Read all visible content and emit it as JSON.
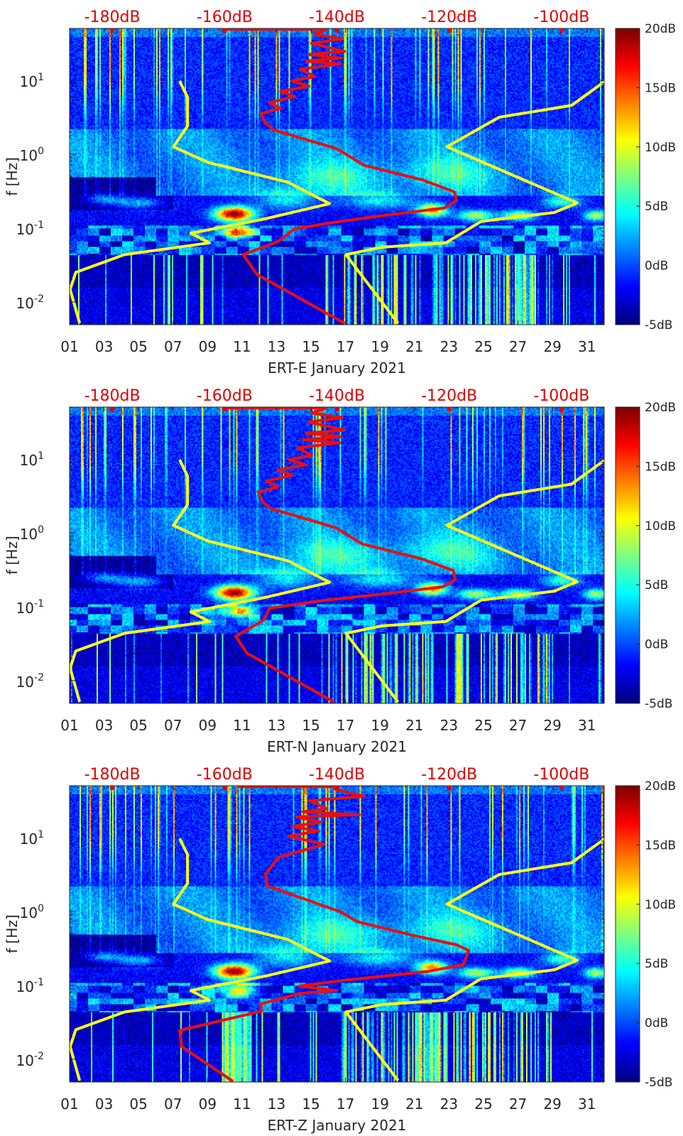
{
  "chart_data": [
    {
      "type": "heatmap",
      "xlabel": "ERT-E January 2021",
      "ylabel": "f [Hz]",
      "x_range_days": [
        1,
        32
      ],
      "x_ticks": [
        "01",
        "03",
        "05",
        "07",
        "09",
        "11",
        "13",
        "15",
        "17",
        "19",
        "21",
        "23",
        "25",
        "27",
        "29",
        "31"
      ],
      "y_scale": "log",
      "y_range_log10": [
        -2.308,
        1.702
      ],
      "y_ticks": [
        {
          "log10": 1,
          "base": "10",
          "exp": "1"
        },
        {
          "log10": 0,
          "base": "10",
          "exp": "0"
        },
        {
          "log10": -1,
          "base": "10",
          "exp": "-1"
        },
        {
          "log10": -2,
          "base": "10",
          "exp": "-2"
        }
      ],
      "colorbar": {
        "range": [
          -5,
          20
        ],
        "ticks": [
          {
            "value": 20,
            "label": "20dB"
          },
          {
            "value": 15,
            "label": "15dB"
          },
          {
            "value": 10,
            "label": "10dB"
          },
          {
            "value": 5,
            "label": "5dB"
          },
          {
            "value": 0,
            "label": "0dB"
          },
          {
            "value": -5,
            "label": "-5dB"
          }
        ]
      },
      "top_axis": {
        "range_db": [
          -187.6,
          -92.4
        ],
        "ticks": [
          {
            "value": -180,
            "label": "-180dB"
          },
          {
            "value": -160,
            "label": "-160dB"
          },
          {
            "value": -140,
            "label": "-140dB"
          },
          {
            "value": -120,
            "label": "-120dB"
          },
          {
            "value": -100,
            "label": "-100dB"
          }
        ],
        "color": "#e00000"
      },
      "series": [
        {
          "name": "low-noise-model",
          "color": "#ffff1a",
          "points_db_log10f": [
            [
              -168.0,
              0.99
            ],
            [
              -166.6,
              0.77
            ],
            [
              -166.6,
              0.38
            ],
            [
              -169.1,
              0.1
            ],
            [
              -163.0,
              -0.11
            ],
            [
              -148.7,
              -0.38
            ],
            [
              -141.3,
              -0.67
            ],
            [
              -152.5,
              -0.87
            ],
            [
              -166.0,
              -1.07
            ],
            [
              -162.7,
              -1.2
            ],
            [
              -177.8,
              -1.36
            ],
            [
              -186.5,
              -1.6
            ],
            [
              -187.5,
              -1.83
            ],
            [
              -185.8,
              -2.29
            ]
          ]
        },
        {
          "name": "high-noise-model",
          "color": "#ffff1a",
          "points_db_log10f": [
            [
              -92.2,
              0.99
            ],
            [
              -98.2,
              0.66
            ],
            [
              -111.1,
              0.5
            ],
            [
              -120.4,
              0.1
            ],
            [
              -97.2,
              -0.66
            ],
            [
              -101.3,
              -0.79
            ],
            [
              -114.3,
              -0.91
            ],
            [
              -120.6,
              -1.2
            ],
            [
              -132.0,
              -1.26
            ],
            [
              -138.4,
              -1.36
            ],
            [
              -129.1,
              -2.29
            ]
          ]
        },
        {
          "name": "station-psd",
          "color": "#e81010",
          "points_db_log10f": [
            [
              -160.5,
              1.69
            ],
            [
              -141.9,
              1.69
            ],
            [
              -144,
              1.62
            ],
            [
              -139,
              1.56
            ],
            [
              -144.5,
              1.5
            ],
            [
              -138.6,
              1.39
            ],
            [
              -145,
              1.35
            ],
            [
              -139.2,
              1.3
            ],
            [
              -145.5,
              1.26
            ],
            [
              -139.4,
              1.22
            ],
            [
              -146.5,
              1.15
            ],
            [
              -144,
              1.05
            ],
            [
              -148,
              0.99
            ],
            [
              -145,
              0.92
            ],
            [
              -150,
              0.85
            ],
            [
              -147.5,
              0.78
            ],
            [
              -152,
              0.7
            ],
            [
              -150,
              0.62
            ],
            [
              -153.5,
              0.55
            ],
            [
              -152.7,
              0.42
            ],
            [
              -151.3,
              0.33
            ],
            [
              -139.9,
              0.07
            ],
            [
              -135.2,
              -0.15
            ],
            [
              -124.7,
              -0.35
            ],
            [
              -119.1,
              -0.51
            ],
            [
              -118.7,
              -0.63
            ],
            [
              -120.9,
              -0.73
            ],
            [
              -131.8,
              -0.83
            ],
            [
              -140.3,
              -0.92
            ],
            [
              -147.5,
              -1.01
            ],
            [
              -150.4,
              -1.18
            ],
            [
              -156.7,
              -1.36
            ],
            [
              -154.2,
              -1.63
            ],
            [
              -138.6,
              -2.29
            ]
          ]
        }
      ]
    },
    {
      "type": "heatmap",
      "xlabel": "ERT-N January 2021",
      "ylabel": "f [Hz]",
      "x_range_days": [
        1,
        32
      ],
      "x_ticks": [
        "01",
        "03",
        "05",
        "07",
        "09",
        "11",
        "13",
        "15",
        "17",
        "19",
        "21",
        "23",
        "25",
        "27",
        "29",
        "31"
      ],
      "y_scale": "log",
      "y_range_log10": [
        -2.308,
        1.702
      ],
      "y_ticks": [
        {
          "log10": 1,
          "base": "10",
          "exp": "1"
        },
        {
          "log10": 0,
          "base": "10",
          "exp": "0"
        },
        {
          "log10": -1,
          "base": "10",
          "exp": "-1"
        },
        {
          "log10": -2,
          "base": "10",
          "exp": "-2"
        }
      ],
      "colorbar": {
        "range": [
          -5,
          20
        ],
        "ticks": [
          {
            "value": 20,
            "label": "20dB"
          },
          {
            "value": 15,
            "label": "15dB"
          },
          {
            "value": 10,
            "label": "10dB"
          },
          {
            "value": 5,
            "label": "5dB"
          },
          {
            "value": 0,
            "label": "0dB"
          },
          {
            "value": -5,
            "label": "-5dB"
          }
        ]
      },
      "top_axis": {
        "range_db": [
          -187.6,
          -92.4
        ],
        "ticks": [
          {
            "value": -180,
            "label": "-180dB"
          },
          {
            "value": -160,
            "label": "-160dB"
          },
          {
            "value": -140,
            "label": "-140dB"
          },
          {
            "value": -120,
            "label": "-120dB"
          },
          {
            "value": -100,
            "label": "-100dB"
          }
        ],
        "color": "#e00000"
      },
      "series": [
        {
          "name": "low-noise-model",
          "color": "#ffff1a",
          "points_db_log10f": [
            [
              -168.0,
              0.99
            ],
            [
              -166.6,
              0.77
            ],
            [
              -166.6,
              0.38
            ],
            [
              -169.1,
              0.1
            ],
            [
              -163.0,
              -0.11
            ],
            [
              -148.7,
              -0.38
            ],
            [
              -141.3,
              -0.67
            ],
            [
              -152.5,
              -0.87
            ],
            [
              -166.0,
              -1.07
            ],
            [
              -162.7,
              -1.2
            ],
            [
              -177.8,
              -1.36
            ],
            [
              -186.5,
              -1.6
            ],
            [
              -187.5,
              -1.83
            ],
            [
              -185.8,
              -2.29
            ]
          ]
        },
        {
          "name": "high-noise-model",
          "color": "#ffff1a",
          "points_db_log10f": [
            [
              -92.2,
              0.99
            ],
            [
              -98.2,
              0.66
            ],
            [
              -111.1,
              0.5
            ],
            [
              -120.4,
              0.1
            ],
            [
              -97.2,
              -0.66
            ],
            [
              -101.3,
              -0.79
            ],
            [
              -114.3,
              -0.91
            ],
            [
              -120.6,
              -1.2
            ],
            [
              -132.0,
              -1.26
            ],
            [
              -138.4,
              -1.36
            ],
            [
              -129.1,
              -2.29
            ]
          ]
        },
        {
          "name": "station-psd",
          "color": "#e81010",
          "points_db_log10f": [
            [
              -160.5,
              1.69
            ],
            [
              -141.9,
              1.69
            ],
            [
              -144.5,
              1.62
            ],
            [
              -139,
              1.56
            ],
            [
              -145,
              1.5
            ],
            [
              -138.6,
              1.39
            ],
            [
              -145.5,
              1.35
            ],
            [
              -139.2,
              1.3
            ],
            [
              -146,
              1.26
            ],
            [
              -139.4,
              1.22
            ],
            [
              -147,
              1.15
            ],
            [
              -144.5,
              1.05
            ],
            [
              -148.5,
              0.99
            ],
            [
              -145.5,
              0.92
            ],
            [
              -150.5,
              0.85
            ],
            [
              -148,
              0.78
            ],
            [
              -152.5,
              0.7
            ],
            [
              -150.5,
              0.62
            ],
            [
              -154,
              0.55
            ],
            [
              -153.2,
              0.42
            ],
            [
              -151.8,
              0.33
            ],
            [
              -140.2,
              0.07
            ],
            [
              -135.5,
              -0.15
            ],
            [
              -125,
              -0.35
            ],
            [
              -119.3,
              -0.51
            ],
            [
              -118.9,
              -0.63
            ],
            [
              -121.1,
              -0.73
            ],
            [
              -132,
              -0.83
            ],
            [
              -143,
              -0.92
            ],
            [
              -152,
              -1.02
            ],
            [
              -153,
              -1.18
            ],
            [
              -158,
              -1.4
            ],
            [
              -156,
              -1.63
            ],
            [
              -140.5,
              -2.29
            ]
          ]
        }
      ]
    },
    {
      "type": "heatmap",
      "xlabel": "ERT-Z January 2021",
      "ylabel": "f [Hz]",
      "x_range_days": [
        1,
        32
      ],
      "x_ticks": [
        "01",
        "03",
        "05",
        "07",
        "09",
        "11",
        "13",
        "15",
        "17",
        "19",
        "21",
        "23",
        "25",
        "27",
        "29",
        "31"
      ],
      "y_scale": "log",
      "y_range_log10": [
        -2.308,
        1.702
      ],
      "y_ticks": [
        {
          "log10": 1,
          "base": "10",
          "exp": "1"
        },
        {
          "log10": 0,
          "base": "10",
          "exp": "0"
        },
        {
          "log10": -1,
          "base": "10",
          "exp": "-1"
        },
        {
          "log10": -2,
          "base": "10",
          "exp": "-2"
        }
      ],
      "colorbar": {
        "range": [
          -5,
          20
        ],
        "ticks": [
          {
            "value": 20,
            "label": "20dB"
          },
          {
            "value": 15,
            "label": "15dB"
          },
          {
            "value": 10,
            "label": "10dB"
          },
          {
            "value": 5,
            "label": "5dB"
          },
          {
            "value": 0,
            "label": "0dB"
          },
          {
            "value": -5,
            "label": "-5dB"
          }
        ]
      },
      "top_axis": {
        "range_db": [
          -187.6,
          -92.4
        ],
        "ticks": [
          {
            "value": -180,
            "label": "-180dB"
          },
          {
            "value": -160,
            "label": "-160dB"
          },
          {
            "value": -140,
            "label": "-140dB"
          },
          {
            "value": -120,
            "label": "-120dB"
          },
          {
            "value": -100,
            "label": "-100dB"
          }
        ],
        "color": "#e00000"
      },
      "series": [
        {
          "name": "low-noise-model",
          "color": "#ffff1a",
          "points_db_log10f": [
            [
              -168.0,
              0.99
            ],
            [
              -166.6,
              0.77
            ],
            [
              -166.6,
              0.38
            ],
            [
              -169.1,
              0.1
            ],
            [
              -163.0,
              -0.11
            ],
            [
              -148.7,
              -0.38
            ],
            [
              -141.3,
              -0.67
            ],
            [
              -152.5,
              -0.87
            ],
            [
              -166.0,
              -1.07
            ],
            [
              -162.7,
              -1.2
            ],
            [
              -177.8,
              -1.36
            ],
            [
              -186.5,
              -1.6
            ],
            [
              -187.5,
              -1.83
            ],
            [
              -185.8,
              -2.29
            ]
          ]
        },
        {
          "name": "high-noise-model",
          "color": "#ffff1a",
          "points_db_log10f": [
            [
              -92.2,
              0.99
            ],
            [
              -98.2,
              0.66
            ],
            [
              -111.1,
              0.5
            ],
            [
              -120.4,
              0.1
            ],
            [
              -97.2,
              -0.66
            ],
            [
              -101.3,
              -0.79
            ],
            [
              -114.3,
              -0.91
            ],
            [
              -120.6,
              -1.2
            ],
            [
              -132.0,
              -1.26
            ],
            [
              -138.4,
              -1.36
            ],
            [
              -129.1,
              -2.29
            ]
          ]
        },
        {
          "name": "station-psd",
          "color": "#e81010",
          "points_db_log10f": [
            [
              -157.6,
              1.69
            ],
            [
              -140.3,
              1.69
            ],
            [
              -140.4,
              1.66
            ],
            [
              -135.1,
              1.56
            ],
            [
              -144.9,
              1.5
            ],
            [
              -141.8,
              1.39
            ],
            [
              -146,
              1.35
            ],
            [
              -136.0,
              1.31
            ],
            [
              -147.2,
              1.28
            ],
            [
              -142.7,
              1.21
            ],
            [
              -148,
              1.15
            ],
            [
              -143.2,
              1.09
            ],
            [
              -148.6,
              1.02
            ],
            [
              -142.3,
              0.91
            ],
            [
              -150.4,
              0.73
            ],
            [
              -152.7,
              0.51
            ],
            [
              -152.4,
              0.35
            ],
            [
              -147.7,
              0.22
            ],
            [
              -139.5,
              0.0
            ],
            [
              -136.3,
              -0.14
            ],
            [
              -126.0,
              -0.33
            ],
            [
              -118.7,
              -0.45
            ],
            [
              -116.5,
              -0.53
            ],
            [
              -117.5,
              -0.72
            ],
            [
              -123.7,
              -0.81
            ],
            [
              -138.6,
              -0.93
            ],
            [
              -146.7,
              -1.01
            ],
            [
              -140.0,
              -1.07
            ],
            [
              -146.7,
              -1.11
            ],
            [
              -153.5,
              -1.25
            ],
            [
              -153.5,
              -1.35
            ],
            [
              -168.0,
              -1.61
            ],
            [
              -167.6,
              -1.83
            ],
            [
              -158.5,
              -2.3
            ]
          ]
        }
      ]
    }
  ]
}
